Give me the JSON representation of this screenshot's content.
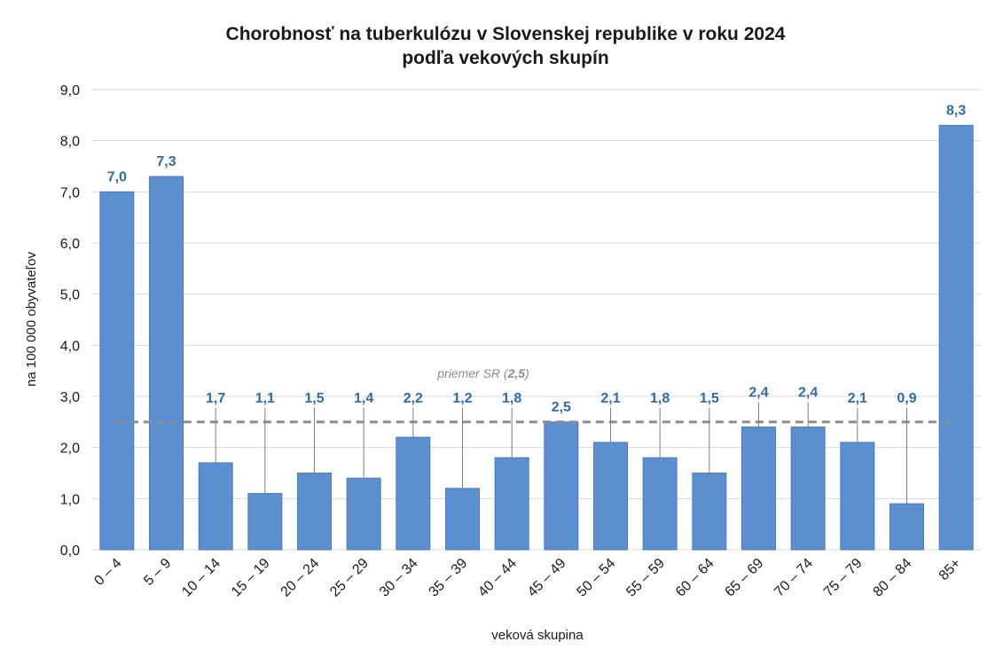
{
  "chart_data": {
    "type": "bar",
    "title": "Chorobnosť na tuberkulózu v Slovenskej republike v roku 2024",
    "subtitle": "podľa vekových skupín",
    "xlabel": "veková  skupina",
    "ylabel": "na 100 000 obyvateľov",
    "ylim": [
      0,
      9
    ],
    "yticks": [
      "0,0",
      "1,0",
      "2,0",
      "3,0",
      "4,0",
      "5,0",
      "6,0",
      "7,0",
      "8,0",
      "9,0"
    ],
    "categories": [
      "0 – 4",
      "5 – 9",
      "10 – 14",
      "15 – 19",
      "20 – 24",
      "25 – 29",
      "30 – 34",
      "35 – 39",
      "40 – 44",
      "45 – 49",
      "50 – 54",
      "55 – 59",
      "60 – 64",
      "65 – 69",
      "70 – 74",
      "75 – 79",
      "80 – 84",
      "85+"
    ],
    "values": [
      7.0,
      7.3,
      1.7,
      1.1,
      1.5,
      1.4,
      2.2,
      1.2,
      1.8,
      2.5,
      2.1,
      1.8,
      1.5,
      2.4,
      2.4,
      2.1,
      0.9,
      8.3
    ],
    "value_labels": [
      "7,0",
      "7,3",
      "1,7",
      "1,1",
      "1,5",
      "1,4",
      "2,2",
      "1,2",
      "1,8",
      "2,5",
      "2,1",
      "1,8",
      "1,5",
      "2,4",
      "2,4",
      "2,1",
      "0,9",
      "8,3"
    ],
    "reference_line": {
      "value": 2.5,
      "label_prefix": "priemer SR (",
      "label_value": "2,5",
      "label_suffix": ")"
    },
    "grid": true,
    "colors": {
      "bar": "#5B8FD0",
      "bar_edge": "#4A7CBF",
      "data_label": "#2E6DA8",
      "reference_line": "#8c8c8c",
      "grid": "#d9d9d9"
    }
  }
}
